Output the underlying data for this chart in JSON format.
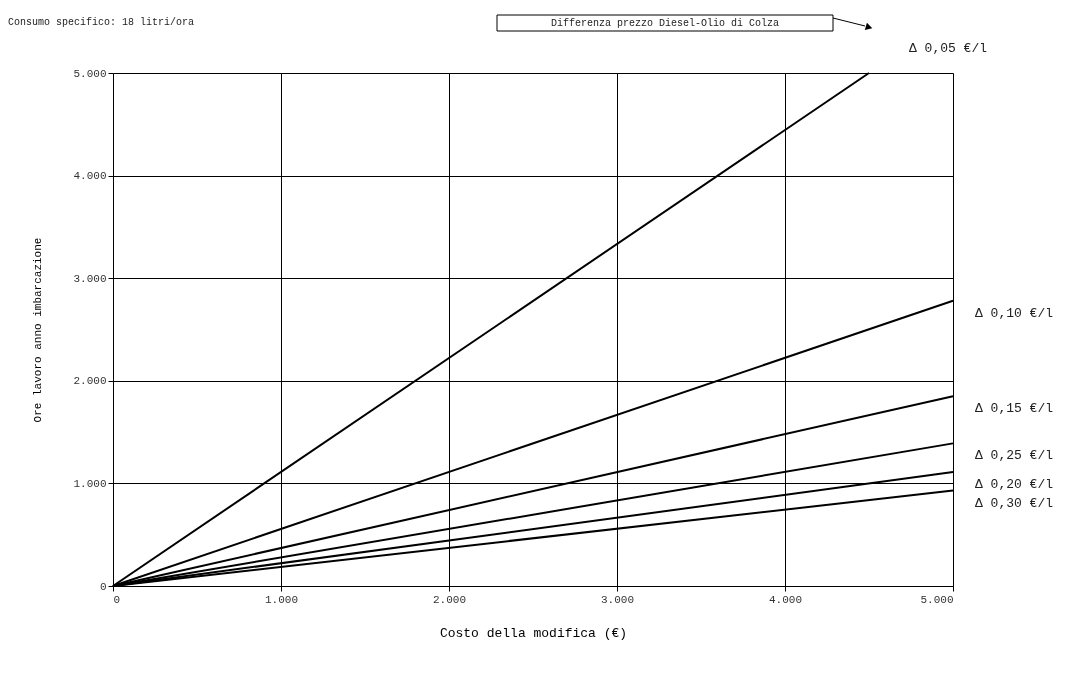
{
  "chart_data": {
    "type": "line",
    "xlabel": "Costo della modifica (€)",
    "ylabel": "Ore lavoro anno imbarcazione",
    "annotations": [
      "Consumo specifico: 18 litri/ora",
      "Differenza prezzo Diesel-Olio di Colza"
    ],
    "xlim": [
      0,
      5000
    ],
    "ylim": [
      0,
      5000
    ],
    "xticks": [
      0,
      {
        "value": 1000,
        "label": "1.000"
      },
      {
        "value": 2000,
        "label": "2.000"
      },
      {
        "value": 3000,
        "label": "3.000"
      },
      {
        "value": 4000,
        "label": "4.000"
      },
      {
        "value": 5000,
        "label": "5.000"
      }
    ],
    "yticks": [
      0,
      {
        "value": 1000,
        "label": "1.000"
      },
      {
        "value": 2000,
        "label": "2.000"
      },
      {
        "value": 3000,
        "label": "3.000"
      },
      {
        "value": 4000,
        "label": "4.000"
      },
      {
        "value": 5000,
        "label": "5.000"
      }
    ],
    "grid": true,
    "legend": false,
    "marker": "none",
    "line_style": "solid",
    "series": [
      {
        "name": "Δ 0,05 €/l",
        "color": "#000000",
        "x": [
          0,
          4500
        ],
        "values": [
          0,
          5000
        ]
      },
      {
        "name": "Δ 0,10 €/l",
        "color": "#000000",
        "x": [
          0,
          5000
        ],
        "values": [
          0,
          2780
        ]
      },
      {
        "name": "Δ 0,15 €/l",
        "color": "#000000",
        "x": [
          0,
          5000
        ],
        "values": [
          0,
          1850
        ]
      },
      {
        "name": "Δ 0,25 €/l",
        "color": "#000000",
        "x": [
          0,
          5000
        ],
        "values": [
          0,
          1390
        ]
      },
      {
        "name": "Δ 0,20 €/l",
        "color": "#000000",
        "x": [
          0,
          5000
        ],
        "values": [
          0,
          1110
        ]
      },
      {
        "name": "Δ 0,30 €/l",
        "color": "#000000",
        "x": [
          0,
          5000
        ],
        "values": [
          0,
          930
        ]
      }
    ]
  }
}
